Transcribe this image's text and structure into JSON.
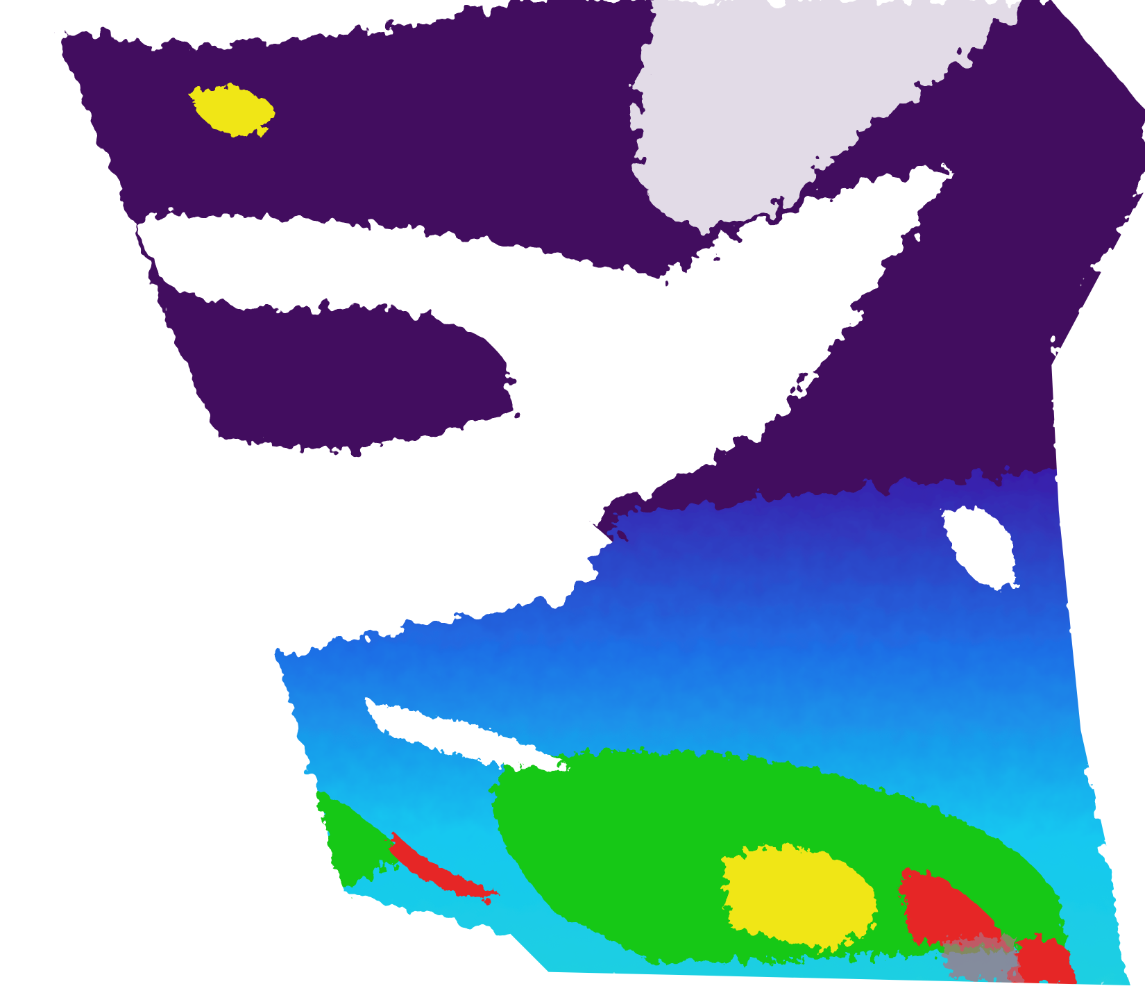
{
  "image": {
    "kind": "satellite ocean color swath",
    "background_color": "#ffffff",
    "colors": {
      "very_low": "#42105e",
      "low": "#3a1aa8",
      "mid_low": "#1e6fe6",
      "mid": "#14c8f0",
      "mid_high": "#14c814",
      "high": "#f0e614",
      "very_high": "#e62828",
      "land_flag": "#b07080",
      "cloud": "#ffffff"
    }
  }
}
